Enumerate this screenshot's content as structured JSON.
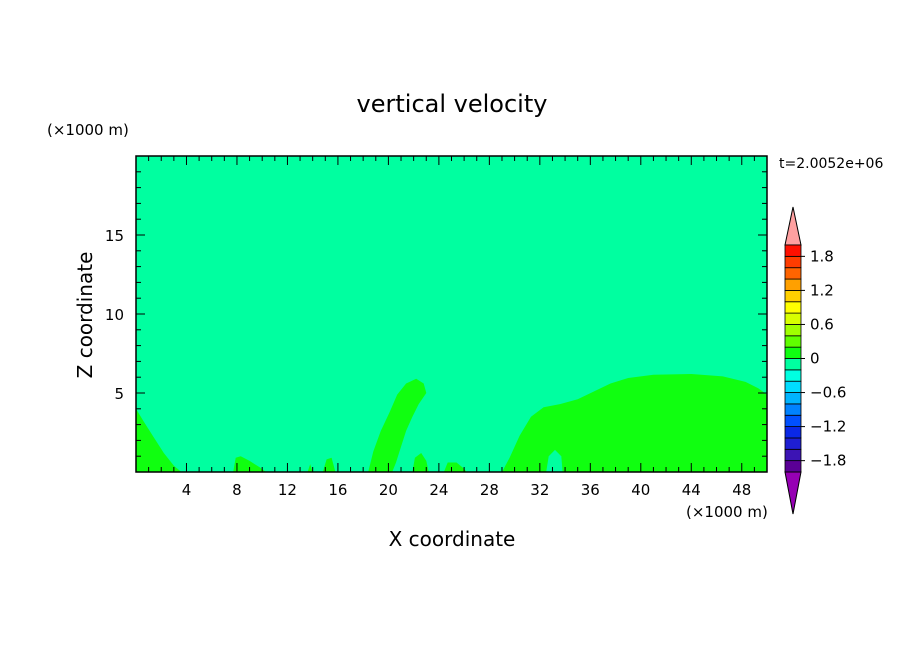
{
  "chart_data": {
    "type": "heatmap",
    "title": "vertical velocity",
    "xlabel": "X coordinate",
    "ylabel": "Z coordinate",
    "x_unit": "(×1000 m)",
    "y_unit": "(×1000 m)",
    "time_label": "t=2.0052e+06",
    "xlim": [
      0,
      50
    ],
    "ylim": [
      0,
      20
    ],
    "xticks": [
      4,
      8,
      12,
      16,
      20,
      24,
      28,
      32,
      36,
      40,
      44,
      48
    ],
    "yticks": [
      5,
      10,
      15
    ],
    "xtick_labels": [
      "4",
      "8",
      "12",
      "16",
      "20",
      "24",
      "28",
      "32",
      "36",
      "40",
      "44",
      "48"
    ],
    "ytick_labels": [
      "5",
      "10",
      "15"
    ],
    "colorbar": {
      "min": -2.0,
      "max": 2.0,
      "step": 0.2,
      "tick_values": [
        1.8,
        1.2,
        0.6,
        0,
        -0.6,
        -1.2,
        -1.8
      ],
      "tick_labels": [
        "1.8",
        "1.2",
        "0.6",
        "0",
        "−0.6",
        "−1.2",
        "−1.8"
      ],
      "colors": [
        "#5a0096",
        "#3c14b4",
        "#1e1ed2",
        "#0a28e6",
        "#0050ff",
        "#0082ff",
        "#00b4ff",
        "#00dcff",
        "#00ffe1",
        "#00ffa0",
        "#10ff10",
        "#60ff00",
        "#a0ff00",
        "#d8ff00",
        "#ffff00",
        "#ffd000",
        "#ffa000",
        "#ff6400",
        "#ff3c00",
        "#ff1000"
      ],
      "over_color": "#ffa0a0",
      "under_color": "#9600b4"
    },
    "fields": [
      {
        "level": 0,
        "color": "#00ffa0",
        "description": "background near-zero band"
      },
      {
        "level": 0.1,
        "color": "#10ff10",
        "regions": [
          "x 0-3 km near surface",
          "x 7-10 km",
          "x 18-23 km plume to 5.8 km",
          "x 29-50 km plume to 6.2 km"
        ]
      },
      {
        "level": -0.1,
        "color": "#00ffa0",
        "regions": [
          "x 32.5-33.5 km near surface"
        ]
      }
    ]
  }
}
